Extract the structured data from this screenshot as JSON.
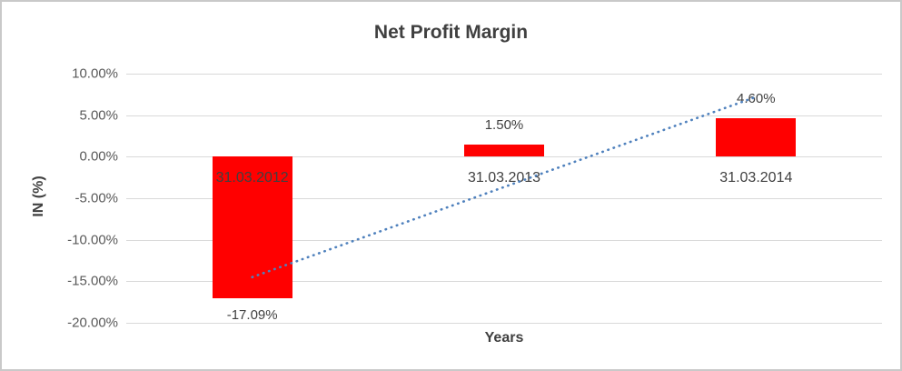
{
  "chart_data": {
    "type": "bar",
    "title": "Net Profit Margin",
    "categories": [
      "31.03.2012",
      "31.03.2013",
      "31.03.2014"
    ],
    "values": [
      -17.09,
      1.5,
      4.6
    ],
    "data_labels": [
      "-17.09%",
      "1.50%",
      "4.60%"
    ],
    "xlabel": "Years",
    "ylabel": "IN (%)",
    "ylim": [
      -20,
      10
    ],
    "yticks": [
      {
        "value": 10,
        "label": "10.00%"
      },
      {
        "value": 5,
        "label": "5.00%"
      },
      {
        "value": 0,
        "label": "0.00%"
      },
      {
        "value": -5,
        "label": "-5.00%"
      },
      {
        "value": -10,
        "label": "-10.00%"
      },
      {
        "value": -15,
        "label": "-15.00%"
      },
      {
        "value": -20,
        "label": "-20.00%"
      }
    ],
    "grid": true,
    "legend": "none",
    "bar_color": "#FF0000",
    "trendline": {
      "type": "linear",
      "style": "dotted",
      "color": "#4F81BD",
      "start_value": -14.5,
      "end_value": 7.2
    },
    "colors": {
      "title_text": "#404040",
      "tick_text": "#595959",
      "label_text": "#404040",
      "gridline": "#D9D9D9",
      "background": "#FFFFFF",
      "border": "#C9C9C9"
    }
  }
}
